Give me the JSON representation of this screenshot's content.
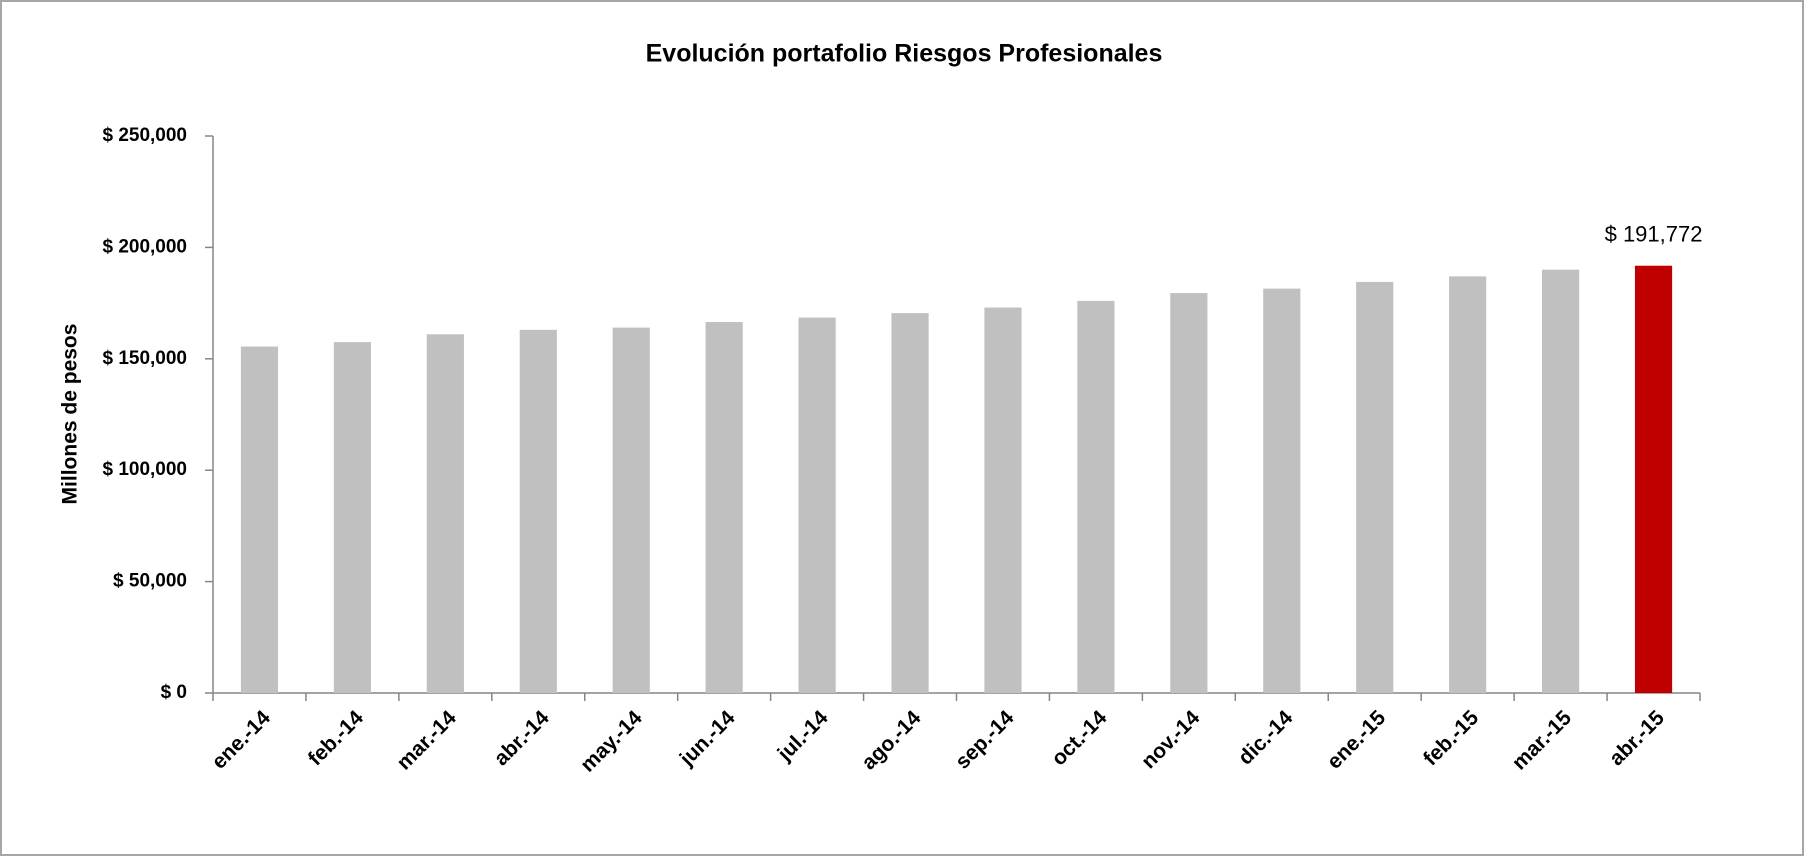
{
  "chart_data": {
    "type": "bar",
    "title": "Evolución portafolio Riesgos Profesionales",
    "y_label": "Millones de pesos",
    "categories": [
      "ene.-14",
      "feb.-14",
      "mar.-14",
      "abr.-14",
      "may.-14",
      "jun.-14",
      "jul.-14",
      "ago.-14",
      "sep.-14",
      "oct.-14",
      "nov.-14",
      "dic.-14",
      "ene.-15",
      "feb.-15",
      "mar.-15",
      "abr.-15"
    ],
    "values": [
      155500,
      157500,
      161000,
      163000,
      164000,
      166500,
      168500,
      170500,
      173000,
      176000,
      179500,
      181500,
      184500,
      187000,
      190000,
      191772
    ],
    "value_labels": [
      null,
      null,
      null,
      null,
      null,
      null,
      null,
      null,
      null,
      null,
      null,
      null,
      null,
      null,
      null,
      "$ 191,772"
    ],
    "colors": [
      "#c0c0c0",
      "#c0c0c0",
      "#c0c0c0",
      "#c0c0c0",
      "#c0c0c0",
      "#c0c0c0",
      "#c0c0c0",
      "#c0c0c0",
      "#c0c0c0",
      "#c0c0c0",
      "#c0c0c0",
      "#c0c0c0",
      "#c0c0c0",
      "#c0c0c0",
      "#c0c0c0",
      "#c00000"
    ],
    "ylim": [
      0,
      250000
    ],
    "yticks": [
      {
        "value": 0,
        "label": "$ 0"
      },
      {
        "value": 50000,
        "label": "$ 50,000"
      },
      {
        "value": 100000,
        "label": "$ 100,000"
      },
      {
        "value": 150000,
        "label": "$ 150,000"
      },
      {
        "value": 200000,
        "label": "$ 200,000"
      },
      {
        "value": 250000,
        "label": "$ 250,000"
      }
    ],
    "grid": false
  }
}
